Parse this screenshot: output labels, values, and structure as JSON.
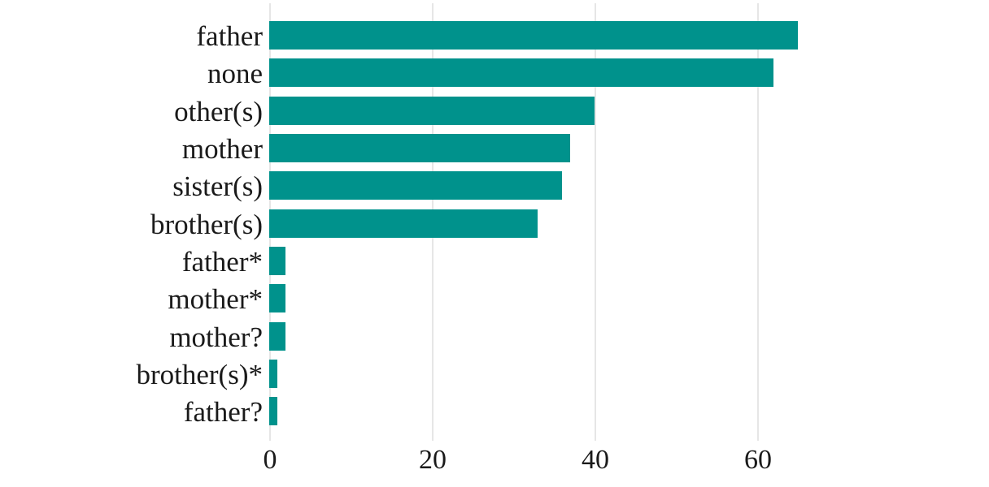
{
  "chart_data": {
    "type": "bar",
    "orientation": "horizontal",
    "title": "",
    "subtitle": "",
    "xlabel": "",
    "ylabel": "",
    "categories": [
      "father",
      "none",
      "other(s)",
      "mother",
      "sister(s)",
      "brother(s)",
      "father*",
      "mother*",
      "mother?",
      "brother(s)*",
      "father?"
    ],
    "values": [
      65,
      62,
      40,
      37,
      36,
      33,
      2,
      2,
      2,
      1,
      1
    ],
    "xticks": [
      "0",
      "20",
      "40",
      "60"
    ],
    "xtick_values": [
      0,
      20,
      40,
      60
    ],
    "xlim": [
      0,
      70
    ],
    "grid": true,
    "gridlines": "vertical",
    "legend": false,
    "colors": {
      "bar": "#00928C",
      "gridline": "#e6e6e6",
      "text": "#1a1a1a",
      "background": "#ffffff"
    }
  }
}
